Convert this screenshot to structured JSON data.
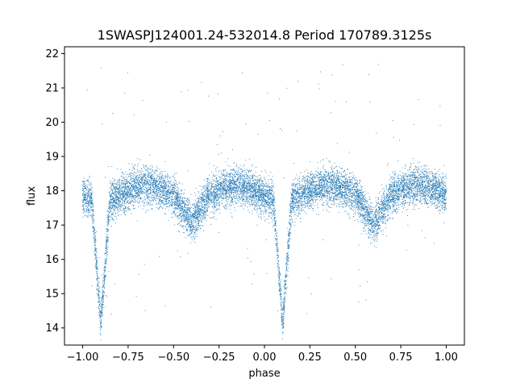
{
  "chart_data": {
    "type": "scatter",
    "title": "1SWASPJ124001.24-532014.8 Period 170789.3125s",
    "xlabel": "phase",
    "ylabel": "flux",
    "xlim": [
      -1.1,
      1.1
    ],
    "ylim": [
      13.5,
      22.2
    ],
    "x_ticks": [
      -1.0,
      -0.75,
      -0.5,
      -0.25,
      0.0,
      0.25,
      0.5,
      0.75,
      1.0
    ],
    "x_tick_labels": [
      "−1.00",
      "−0.75",
      "−0.50",
      "−0.25",
      "0.00",
      "0.25",
      "0.50",
      "0.75",
      "1.00"
    ],
    "y_ticks": [
      14,
      15,
      16,
      17,
      18,
      19,
      20,
      21,
      22
    ],
    "y_tick_labels": [
      "14",
      "15",
      "16",
      "17",
      "18",
      "19",
      "20",
      "21",
      "22"
    ],
    "grid": false,
    "legend": "none",
    "point_color": "#1f77b4",
    "series": [
      {
        "phase_range": [
          -1.0,
          1.0
        ],
        "period_in_phase": 1.0,
        "baseline_flux": 17.6,
        "max_flux": 18.1,
        "max_flux_phases": [
          -0.65,
          -0.2,
          0.35,
          0.8
        ],
        "primary_eclipse_phase": [
          -0.9,
          0.1
        ],
        "primary_eclipse_min_flux": 14.2,
        "secondary_eclipse_phase": [
          -0.4,
          0.6
        ],
        "secondary_eclipse_min_flux": 17.4,
        "scatter_sigma": 0.3,
        "outlier_range": [
          14.4,
          21.7
        ]
      }
    ]
  }
}
